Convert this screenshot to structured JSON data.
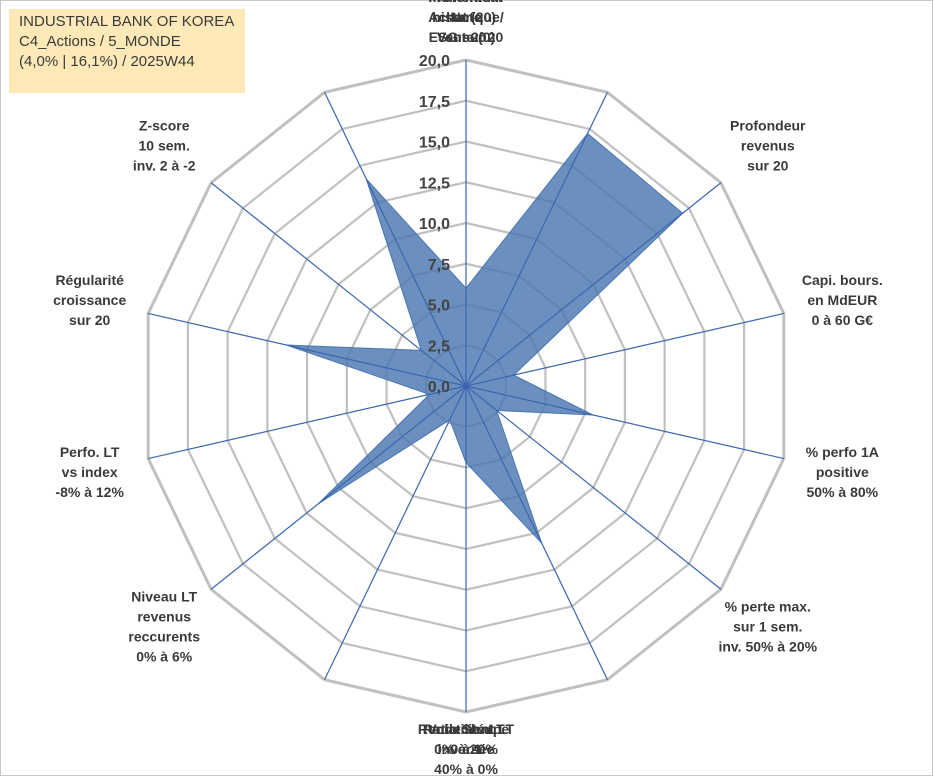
{
  "title_box": {
    "line1": "INDUSTRIAL BANK OF KOREA",
    "line2": "C4_Actions / 5_MONDE",
    "line3": "(4,0% | 16,1%) / 2025W44"
  },
  "colors": {
    "fill": "#4a76b0",
    "grid": "#c0c0c0",
    "spoke": "#3a66b0",
    "title_bg": "#fde9b8"
  },
  "chart_data": {
    "type": "radar",
    "rmax": 20,
    "ticks": [
      "0,0",
      "2,5",
      "5,0",
      "7,5",
      "10,0",
      "12,5",
      "15,0",
      "17,5",
      "20,0"
    ],
    "axes": [
      {
        "lines": [
          "Note",
          "ESG sur 20"
        ],
        "value": 6.0
      },
      {
        "lines": [
          "Profondeur",
          "historique",
          "sur 20"
        ],
        "value": 17.2
      },
      {
        "lines": [
          "Profondeur",
          "revenus",
          "sur 20"
        ],
        "value": 17.0
      },
      {
        "lines": [
          "Capi. bours.",
          "en MdEUR",
          "0 à 60 G€"
        ],
        "value": 3.0
      },
      {
        "lines": [
          "% perfo 1A",
          "positive",
          "50% à 80%"
        ],
        "value": 8.0
      },
      {
        "lines": [
          "% perte max.",
          "sur 1 sem.",
          "inv. 50% à 20%"
        ],
        "value": 2.4
      },
      {
        "lines": [
          "Volatilité LT",
          "inversée",
          "40% à 0%"
        ],
        "value": 10.7
      },
      {
        "lines": [
          "Ratio Sharpe",
          "0 à 1"
        ],
        "value": 4.7
      },
      {
        "lines": [
          "Rendement LT",
          "0% à 20%"
        ],
        "value": 2.3
      },
      {
        "lines": [
          "Niveau LT",
          "revenus",
          "reccurents",
          "0% à 6%"
        ],
        "value": 11.6
      },
      {
        "lines": [
          "Perfo. LT",
          "vs index",
          "-8% à 12%"
        ],
        "value": 2.3
      },
      {
        "lines": [
          "Régularité",
          "croissance",
          "sur 20"
        ],
        "value": 11.3
      },
      {
        "lines": [
          "Z-score",
          "10 sem.",
          "inv. 2 à -2"
        ],
        "value": 3.5
      },
      {
        "lines": [
          "Momentum",
          "Achat (20) /",
          "Vente (0)"
        ],
        "value": 14.1
      }
    ]
  }
}
